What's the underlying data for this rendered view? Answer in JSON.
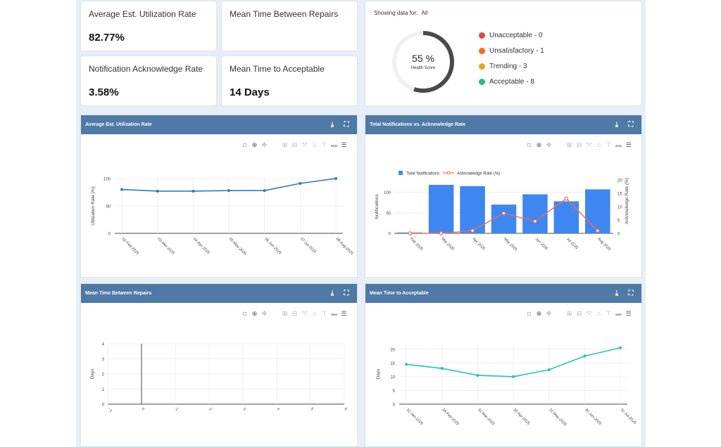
{
  "kpis": [
    {
      "title": "Average Est. Utilization Rate",
      "value": "82.77%"
    },
    {
      "title": "Mean Time Between Repairs",
      "value": ""
    },
    {
      "title": "Notification Acknowledge Rate",
      "value": "3.58%"
    },
    {
      "title": "Mean Time to Acceptable",
      "value": "14 Days"
    }
  ],
  "health": {
    "showing_label": "Showing data for:",
    "showing_value": "All",
    "score": "55 %",
    "score_label": "Health Score",
    "score_fraction": 0.55,
    "legend": [
      {
        "label": "Unacceptable - 0",
        "color": "#e8413f"
      },
      {
        "label": "Unsatisfactory - 1",
        "color": "#f26b1d"
      },
      {
        "label": "Trending - 3",
        "color": "#f0a019"
      },
      {
        "label": "Acceptable - 8",
        "color": "#1fbf8f"
      }
    ]
  },
  "panels": {
    "p1": {
      "title": "Average Est. Utilization Rate"
    },
    "p2": {
      "title": "Total Notifications vs. Acknowledge Rate"
    },
    "p3": {
      "title": "Mean Time Between Repairs"
    },
    "p4": {
      "title": "Mean Time to Acceptable"
    }
  },
  "icons": {
    "download": "download-icon",
    "fullscreen": "fullscreen-icon"
  },
  "chart_data": [
    {
      "type": "line",
      "title": "Average Est. Utilization Rate",
      "ylabel": "Utilization Rate (%)",
      "ylim": [
        0,
        100
      ],
      "yticks": [
        "0",
        "50",
        "100"
      ],
      "x": [
        "02-Feb-2025",
        "03-Mar-2025",
        "04-Apr-2025",
        "05-May-2025",
        "06-Jun-2025",
        "07-Jul-2025",
        "08-Aug-2025"
      ],
      "values": [
        80,
        77,
        77,
        78,
        78,
        91,
        100
      ],
      "color": "#2e7bb5"
    },
    {
      "type": "bar",
      "title": "Total Notifications vs. Acknowledge Rate",
      "categories": [
        "Feb 2025",
        "Mar 2025",
        "Apr 2025",
        "May 2025",
        "Jun 2025",
        "Jul 2025",
        "Aug 2025"
      ],
      "ylabel": "Notifications",
      "y2label": "Acknowledge Rate (%)",
      "ylim": [
        0,
        130
      ],
      "y2lim": [
        0,
        20
      ],
      "yticks": [
        "0",
        "50",
        "100"
      ],
      "y2ticks": [
        "0",
        "5",
        "10",
        "15",
        "20"
      ],
      "series": [
        {
          "name": "Total Notifications",
          "type": "bar",
          "values": [
            2,
            118,
            115,
            70,
            95,
            78,
            107
          ],
          "color": "#3f87f0"
        },
        {
          "name": "Acknowledge Rate (%)",
          "type": "line",
          "values": [
            0,
            0,
            1,
            7.5,
            4.5,
            13,
            1
          ],
          "color": "#ef6c4f"
        }
      ],
      "legend": "top-left"
    },
    {
      "type": "line",
      "title": "Mean Time Between Repairs",
      "ylabel": "Days",
      "xlim": [
        -1,
        6
      ],
      "ylim": [
        0,
        4
      ],
      "xticks": [
        "−1",
        "0",
        "1",
        "2",
        "3",
        "4",
        "5",
        "6"
      ],
      "yticks": [
        "0",
        "1",
        "2",
        "3",
        "4"
      ],
      "values": []
    },
    {
      "type": "line",
      "title": "Mean Time to Acceptable",
      "ylabel": "Days",
      "ylim": [
        0,
        22
      ],
      "yticks": [
        "0",
        "5",
        "10",
        "15",
        "20"
      ],
      "x": [
        "31-Jan-2025",
        "28-Feb-2025",
        "31-Mar-2025",
        "30-Apr-2025",
        "31-May-2025",
        "30-Jun-2025",
        "31-Jul-2025"
      ],
      "values": [
        14.5,
        13,
        10.5,
        10,
        12.5,
        17.5,
        20.5
      ],
      "color": "#1fc9a0"
    }
  ]
}
